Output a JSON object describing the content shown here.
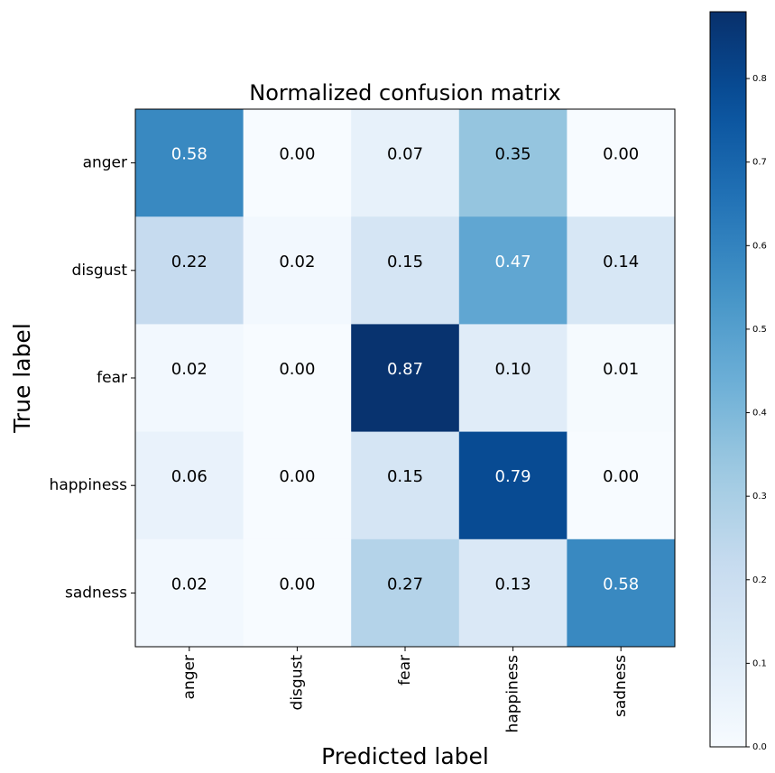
{
  "chart_data": {
    "type": "heatmap",
    "title": "Normalized confusion matrix",
    "x_label": "Predicted label",
    "y_label": "True label",
    "x_categories": [
      "anger",
      "disgust",
      "fear",
      "happiness",
      "sadness"
    ],
    "y_categories": [
      "anger",
      "disgust",
      "fear",
      "happiness",
      "sadness"
    ],
    "values": [
      [
        0.58,
        0.0,
        0.07,
        0.35,
        0.0
      ],
      [
        0.22,
        0.02,
        0.15,
        0.47,
        0.14
      ],
      [
        0.02,
        0.0,
        0.87,
        0.1,
        0.01
      ],
      [
        0.06,
        0.0,
        0.15,
        0.79,
        0.0
      ],
      [
        0.02,
        0.0,
        0.27,
        0.13,
        0.58
      ]
    ],
    "value_labels": [
      [
        "0.58",
        "0.00",
        "0.07",
        "0.35",
        "0.00"
      ],
      [
        "0.22",
        "0.02",
        "0.15",
        "0.47",
        "0.14"
      ],
      [
        "0.02",
        "0.00",
        "0.87",
        "0.10",
        "0.01"
      ],
      [
        "0.06",
        "0.00",
        "0.15",
        "0.79",
        "0.00"
      ],
      [
        "0.02",
        "0.00",
        "0.27",
        "0.13",
        "0.58"
      ]
    ],
    "colormap": "Blues",
    "clim": [
      0,
      0.88
    ],
    "cticks": [
      {
        "value": 0,
        "label": "0.0"
      },
      0.1,
      0.2,
      0.3,
      0.4,
      0.5,
      0.6,
      0.7,
      0.8
    ]
  }
}
